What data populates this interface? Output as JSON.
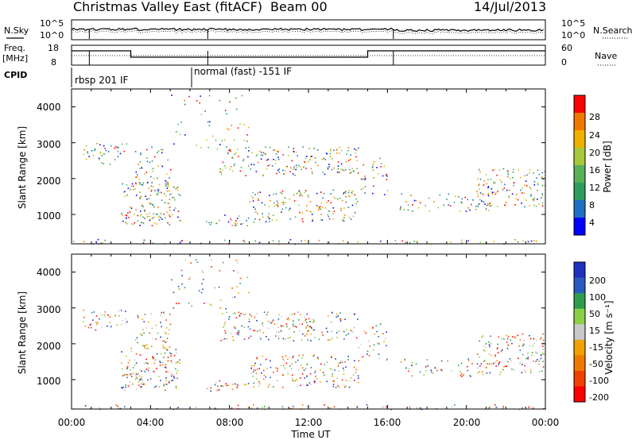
{
  "header": {
    "title": "Christmas Valley East (fitACF)",
    "beam": "Beam 00",
    "date": "14/Jul/2013"
  },
  "labels": {
    "nsky": "N.Sky",
    "nsearch": "N.Search",
    "freq": "Freq.",
    "freq_unit": "[MHz]",
    "nave": "Nave",
    "cpid": "CPID",
    "cpid_values": [
      "rbsp 201 IF",
      "normal (fast) -151 IF"
    ]
  },
  "chart_data": [
    {
      "type": "line",
      "panel": "noise",
      "series": [
        {
          "name": "N.Sky"
        },
        {
          "name": "N.Search"
        }
      ],
      "left_ticks": [
        "10^5",
        "10^0"
      ],
      "right_ticks": [
        "10^5",
        "10^0"
      ]
    },
    {
      "type": "line",
      "panel": "frequency",
      "series": [
        {
          "name": "Freq."
        },
        {
          "name": "Nave"
        }
      ],
      "left_ticks": [
        "18",
        "8"
      ],
      "right_ticks": [
        "60",
        "0"
      ],
      "ylim": [
        8,
        18
      ]
    },
    {
      "type": "heatmap",
      "panel": "power",
      "ylabel": "Slant Range [km]",
      "yticks": [
        "4000",
        "3000",
        "2000",
        "1000"
      ],
      "ylim": [
        180,
        4500
      ],
      "colorbar": {
        "label": "Power [dB]",
        "ticks": [
          "28",
          "24",
          "20",
          "16",
          "12",
          "8",
          "4"
        ],
        "colors": [
          "#0000ff",
          "#1f6fc4",
          "#2e9c5e",
          "#58b058",
          "#a8c83c",
          "#f0b000",
          "#f07800",
          "#ff0000"
        ]
      }
    },
    {
      "type": "heatmap",
      "panel": "velocity",
      "ylabel": "Slant Range [km]",
      "yticks": [
        "4000",
        "3000",
        "2000",
        "1000"
      ],
      "ylim": [
        180,
        4500
      ],
      "colorbar": {
        "label": "Velocity [m s⁻¹]",
        "ticks": [
          "200",
          "100",
          "50",
          "15",
          "-15",
          "-50",
          "-100",
          "-200"
        ],
        "colors": [
          "#2030c0",
          "#2a5ac0",
          "#2e9c4a",
          "#8cd048",
          "#c8c8c8",
          "#f0a000",
          "#f07800",
          "#f04000",
          "#ff0000"
        ]
      }
    }
  ],
  "xaxis": {
    "label": "Time UT",
    "ticks": [
      "00:00",
      "04:00",
      "08:00",
      "12:00",
      "16:00",
      "20:00",
      "00:00"
    ]
  }
}
